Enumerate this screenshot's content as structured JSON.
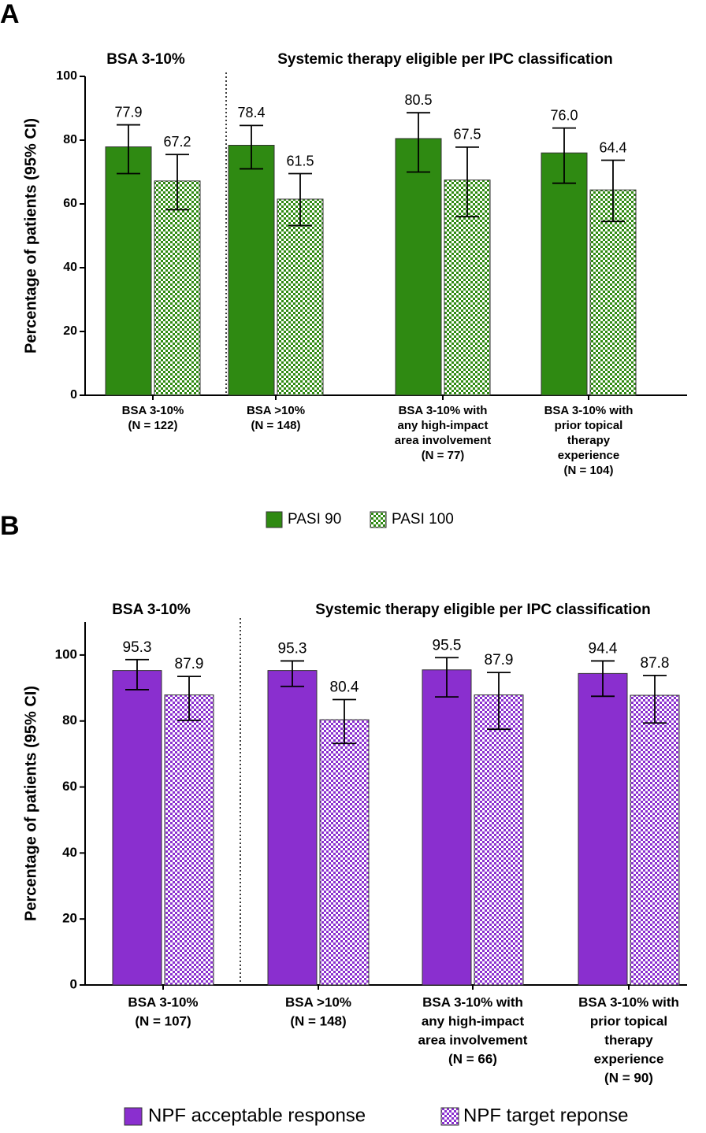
{
  "chart_data": [
    {
      "type": "bar",
      "panel": "A",
      "ylabel": "Percentage of patients (95% CI)",
      "groups": [
        "BSA 3-10%",
        "Systemic therapy eligible per IPC classification"
      ],
      "categories": [
        [
          "BSA  3-10%",
          "(N = 122)"
        ],
        [
          "BSA >10%",
          "(N = 148)"
        ],
        [
          "BSA  3-10% with",
          "any high-impact",
          "area involvement",
          "(N = 77)"
        ],
        [
          "BSA 3-10% with",
          "prior topical",
          "therapy",
          "experience",
          "(N = 104)"
        ]
      ],
      "series": [
        {
          "name": "PASI 90",
          "color": "#2f8a12",
          "pattern": "solid",
          "values": [
            77.9,
            78.4,
            80.5,
            76.0
          ],
          "value_labels": [
            "77.9",
            "78.4",
            "80.5",
            "76.0"
          ],
          "ci": [
            [
              69.5,
              84.8
            ],
            [
              71.0,
              84.6
            ],
            [
              70.0,
              88.6
            ],
            [
              66.5,
              83.8
            ]
          ]
        },
        {
          "name": "PASI 100",
          "color": "#2f8a12",
          "pattern": "checker",
          "values": [
            67.2,
            61.5,
            67.5,
            64.4
          ],
          "value_labels": [
            "67.2",
            "61.5",
            "67.5",
            "64.4"
          ],
          "ci": [
            [
              58.2,
              75.5
            ],
            [
              53.2,
              69.5
            ],
            [
              56.0,
              77.8
            ],
            [
              54.5,
              73.7
            ]
          ]
        }
      ],
      "ylim": [
        0,
        100
      ],
      "yticks": [
        0,
        20,
        40,
        60,
        80,
        100
      ]
    },
    {
      "type": "bar",
      "panel": "B",
      "ylabel": "Percentage of patients (95% CI)",
      "groups": [
        "BSA 3-10%",
        "Systemic therapy eligible per IPC classification"
      ],
      "categories": [
        [
          "BSA 3-10%",
          "(N = 107)"
        ],
        [
          "BSA >10%",
          "(N = 148)"
        ],
        [
          "BSA 3-10% with",
          "any high-impact",
          "area involvement",
          "(N = 66)"
        ],
        [
          "BSA 3-10% with",
          "prior topical",
          "therapy",
          "experience",
          "(N = 90)"
        ]
      ],
      "series": [
        {
          "name": "NPF acceptable response",
          "color": "#8a2fcf",
          "pattern": "solid",
          "values": [
            95.3,
            95.3,
            95.5,
            94.4
          ],
          "value_labels": [
            "95.3",
            "95.3",
            "95.5",
            "94.4"
          ],
          "ci": [
            [
              89.5,
              98.6
            ],
            [
              90.5,
              98.2
            ],
            [
              87.3,
              99.2
            ],
            [
              87.5,
              98.2
            ]
          ]
        },
        {
          "name": "NPF target reponse",
          "color": "#8a2fcf",
          "pattern": "checker",
          "values": [
            87.9,
            80.4,
            87.9,
            87.8
          ],
          "value_labels": [
            "87.9",
            "80.4",
            "87.9",
            "87.8"
          ],
          "ci": [
            [
              80.2,
              93.5
            ],
            [
              73.2,
              86.5
            ],
            [
              77.5,
              94.7
            ],
            [
              79.4,
              93.8
            ]
          ]
        }
      ],
      "ylim": [
        0,
        110
      ],
      "yticks": [
        0,
        20,
        40,
        60,
        80,
        100
      ]
    }
  ]
}
